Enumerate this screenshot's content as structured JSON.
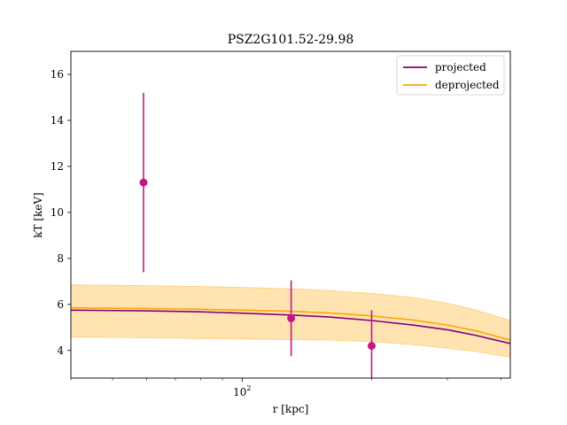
{
  "chart_data": {
    "type": "line",
    "title": "PSZ2G101.52-29.98",
    "xlabel": "r [kpc]",
    "ylabel": "kT [keV]",
    "xscale": "log",
    "xlim": [
      40,
      420
    ],
    "ylim": [
      2.8,
      17.0
    ],
    "yticks": [
      4,
      6,
      8,
      10,
      12,
      14,
      16
    ],
    "xtick_major_label": "10^2",
    "legend_position": "upper right",
    "grid": false,
    "series": [
      {
        "name": "projected",
        "color": "#800080",
        "x": [
          40,
          60,
          80,
          100,
          130,
          160,
          200,
          250,
          300,
          350,
          420
        ],
        "y": [
          5.75,
          5.72,
          5.68,
          5.62,
          5.54,
          5.45,
          5.3,
          5.1,
          4.9,
          4.65,
          4.3
        ]
      },
      {
        "name": "deprojected",
        "color": "#FFA500",
        "x": [
          40,
          60,
          80,
          100,
          130,
          160,
          200,
          250,
          300,
          350,
          420
        ],
        "y": [
          5.85,
          5.82,
          5.79,
          5.75,
          5.7,
          5.63,
          5.5,
          5.32,
          5.1,
          4.85,
          4.45
        ],
        "band_upper": [
          6.85,
          6.82,
          6.78,
          6.74,
          6.68,
          6.6,
          6.48,
          6.3,
          6.05,
          5.75,
          5.3
        ],
        "band_lower": [
          4.58,
          4.55,
          4.52,
          4.5,
          4.47,
          4.45,
          4.38,
          4.25,
          4.1,
          3.95,
          3.7
        ],
        "band_color": "#FFA500"
      }
    ],
    "points": {
      "color": "#C71585",
      "x": [
        59,
        130,
        200
      ],
      "y": [
        11.3,
        5.4,
        4.2
      ],
      "y_low": [
        7.4,
        3.75,
        2.8
      ],
      "y_high": [
        15.2,
        7.05,
        5.75
      ]
    }
  }
}
